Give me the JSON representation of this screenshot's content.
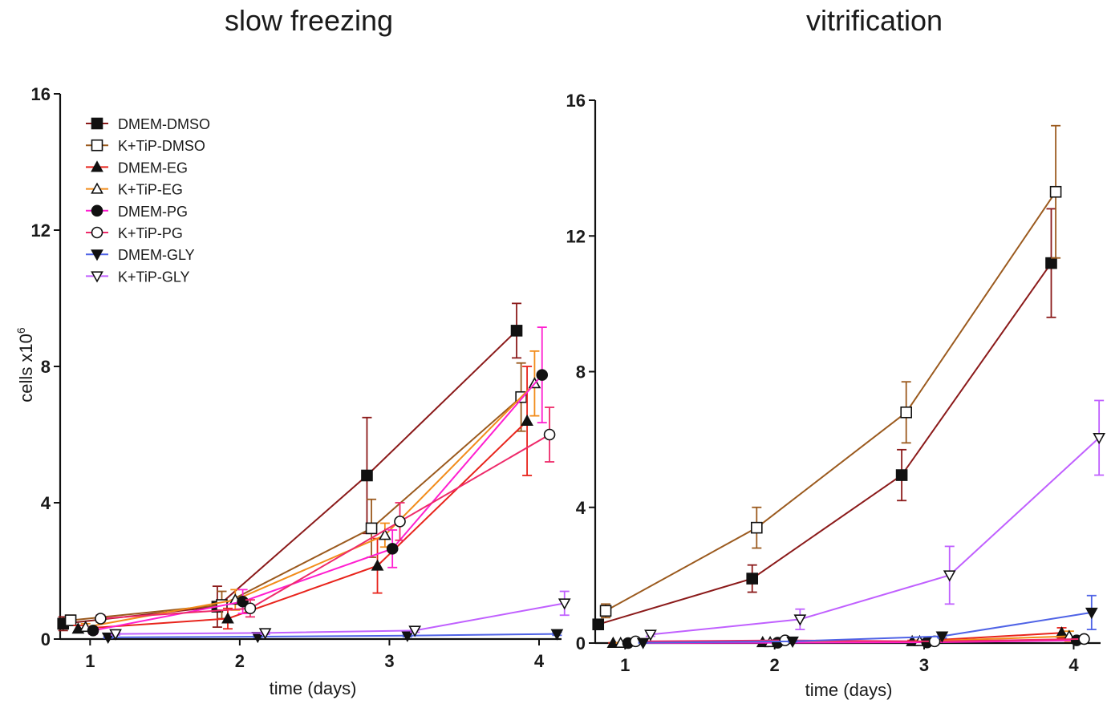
{
  "chart_data": [
    {
      "type": "line",
      "title": "slow freezing",
      "xlabel": "time (days)",
      "ylabel": "cells x10",
      "ylabel_sup": "6",
      "xlim": [
        0.8,
        4.15
      ],
      "ylim": [
        0,
        16
      ],
      "xticks": [
        "1",
        "2",
        "3",
        "4"
      ],
      "yticks": [
        "0",
        "4",
        "8",
        "12",
        "16"
      ],
      "legend_position": "top-left",
      "series": [
        {
          "name": "DMEM-DMSO",
          "color": "#8b1a1a",
          "marker": "square-filled",
          "x": [
            0.82,
            1.85,
            2.85,
            3.85
          ],
          "y": [
            0.45,
            0.95,
            4.8,
            9.05
          ],
          "err": [
            0.2,
            0.6,
            1.7,
            0.8
          ]
        },
        {
          "name": "K+TiP-DMSO",
          "color": "#9b5a1e",
          "marker": "square-open",
          "x": [
            0.87,
            1.88,
            2.88,
            3.88
          ],
          "y": [
            0.55,
            1.0,
            3.25,
            7.1
          ],
          "err": [
            0.15,
            0.4,
            0.85,
            1.0
          ]
        },
        {
          "name": "DMEM-EG",
          "color": "#e8241c",
          "marker": "triangle-filled",
          "x": [
            0.92,
            1.92,
            2.92,
            3.92
          ],
          "y": [
            0.3,
            0.6,
            2.15,
            6.4
          ],
          "err": [
            0.1,
            0.3,
            0.8,
            1.6
          ]
        },
        {
          "name": "K+TiP-EG",
          "color": "#f28c1a",
          "marker": "triangle-open",
          "x": [
            0.97,
            1.97,
            2.97,
            3.97
          ],
          "y": [
            0.35,
            1.15,
            3.05,
            7.5
          ],
          "err": [
            0.1,
            0.3,
            0.35,
            0.95
          ]
        },
        {
          "name": "DMEM-PG",
          "color": "#ff1fd0",
          "marker": "circle-filled",
          "x": [
            1.02,
            2.02,
            3.02,
            4.02
          ],
          "y": [
            0.25,
            1.1,
            2.65,
            7.75
          ],
          "err": [
            0.1,
            0.35,
            0.55,
            1.4
          ]
        },
        {
          "name": "K+TiP-PG",
          "color": "#ee2a6a",
          "marker": "circle-open",
          "x": [
            1.07,
            2.07,
            3.07,
            4.07
          ],
          "y": [
            0.6,
            0.9,
            3.45,
            6.0
          ],
          "err": [
            0.1,
            0.25,
            0.55,
            0.8
          ]
        },
        {
          "name": "DMEM-GLY",
          "color": "#4f63e6",
          "marker": "triangle-down-filled",
          "x": [
            1.12,
            2.12,
            3.12,
            4.12
          ],
          "y": [
            0.05,
            0.07,
            0.1,
            0.15
          ],
          "err": [
            0.02,
            0.02,
            0.03,
            0.04
          ]
        },
        {
          "name": "K+TiP-GLY",
          "color": "#c060ff",
          "marker": "triangle-down-open",
          "x": [
            1.17,
            2.17,
            3.17,
            4.17
          ],
          "y": [
            0.15,
            0.18,
            0.25,
            1.05
          ],
          "err": [
            0.03,
            0.04,
            0.05,
            0.35
          ]
        }
      ]
    },
    {
      "type": "line",
      "title": "vitrification",
      "xlabel": "time (days)",
      "ylabel": "",
      "xlim": [
        0.8,
        4.18
      ],
      "ylim": [
        0,
        16
      ],
      "xticks": [
        "1",
        "2",
        "3",
        "4"
      ],
      "yticks": [
        "0",
        "4",
        "8",
        "12",
        "16"
      ],
      "series": [
        {
          "name": "DMEM-DMSO",
          "color": "#8b1a1a",
          "marker": "square-filled",
          "x": [
            0.82,
            1.85,
            2.85,
            3.85
          ],
          "y": [
            0.55,
            1.9,
            4.95,
            11.2
          ],
          "err": [
            0.05,
            0.4,
            0.75,
            1.6
          ]
        },
        {
          "name": "K+TiP-DMSO",
          "color": "#9b5a1e",
          "marker": "square-open",
          "x": [
            0.87,
            1.88,
            2.88,
            3.88
          ],
          "y": [
            0.95,
            3.4,
            6.8,
            13.3
          ],
          "err": [
            0.2,
            0.6,
            0.9,
            1.95
          ]
        },
        {
          "name": "DMEM-EG",
          "color": "#e8241c",
          "marker": "triangle-filled",
          "x": [
            0.92,
            1.92,
            2.92,
            3.92
          ],
          "y": [
            0.0,
            0.02,
            0.05,
            0.3
          ],
          "err": [
            0.01,
            0.02,
            0.03,
            0.15
          ]
        },
        {
          "name": "K+TiP-EG",
          "color": "#f28c1a",
          "marker": "triangle-open",
          "x": [
            0.97,
            1.97,
            2.97,
            3.97
          ],
          "y": [
            0.0,
            0.02,
            0.05,
            0.2
          ],
          "err": [
            0.01,
            0.02,
            0.03,
            0.15
          ]
        },
        {
          "name": "DMEM-PG",
          "color": "#ff1fd0",
          "marker": "circle-filled",
          "x": [
            1.02,
            2.02,
            3.02,
            4.02
          ],
          "y": [
            0.0,
            0.01,
            0.02,
            0.08
          ],
          "err": [
            0.01,
            0.01,
            0.02,
            0.03
          ]
        },
        {
          "name": "K+TiP-PG",
          "color": "#ee2a6a",
          "marker": "circle-open",
          "x": [
            1.07,
            2.07,
            3.07,
            4.07
          ],
          "y": [
            0.05,
            0.08,
            0.05,
            0.12
          ],
          "err": [
            0.01,
            0.02,
            0.02,
            0.03
          ]
        },
        {
          "name": "DMEM-GLY",
          "color": "#4f63e6",
          "marker": "triangle-down-filled",
          "x": [
            1.12,
            2.12,
            3.12,
            4.12
          ],
          "y": [
            0.01,
            0.05,
            0.2,
            0.9
          ],
          "err": [
            0.01,
            0.02,
            0.05,
            0.5
          ]
        },
        {
          "name": "K+TiP-GLY",
          "color": "#c060ff",
          "marker": "triangle-down-open",
          "x": [
            1.17,
            2.17,
            3.17,
            4.17
          ],
          "y": [
            0.25,
            0.7,
            2.0,
            6.05
          ],
          "err": [
            0.05,
            0.3,
            0.85,
            1.1
          ]
        }
      ]
    }
  ]
}
